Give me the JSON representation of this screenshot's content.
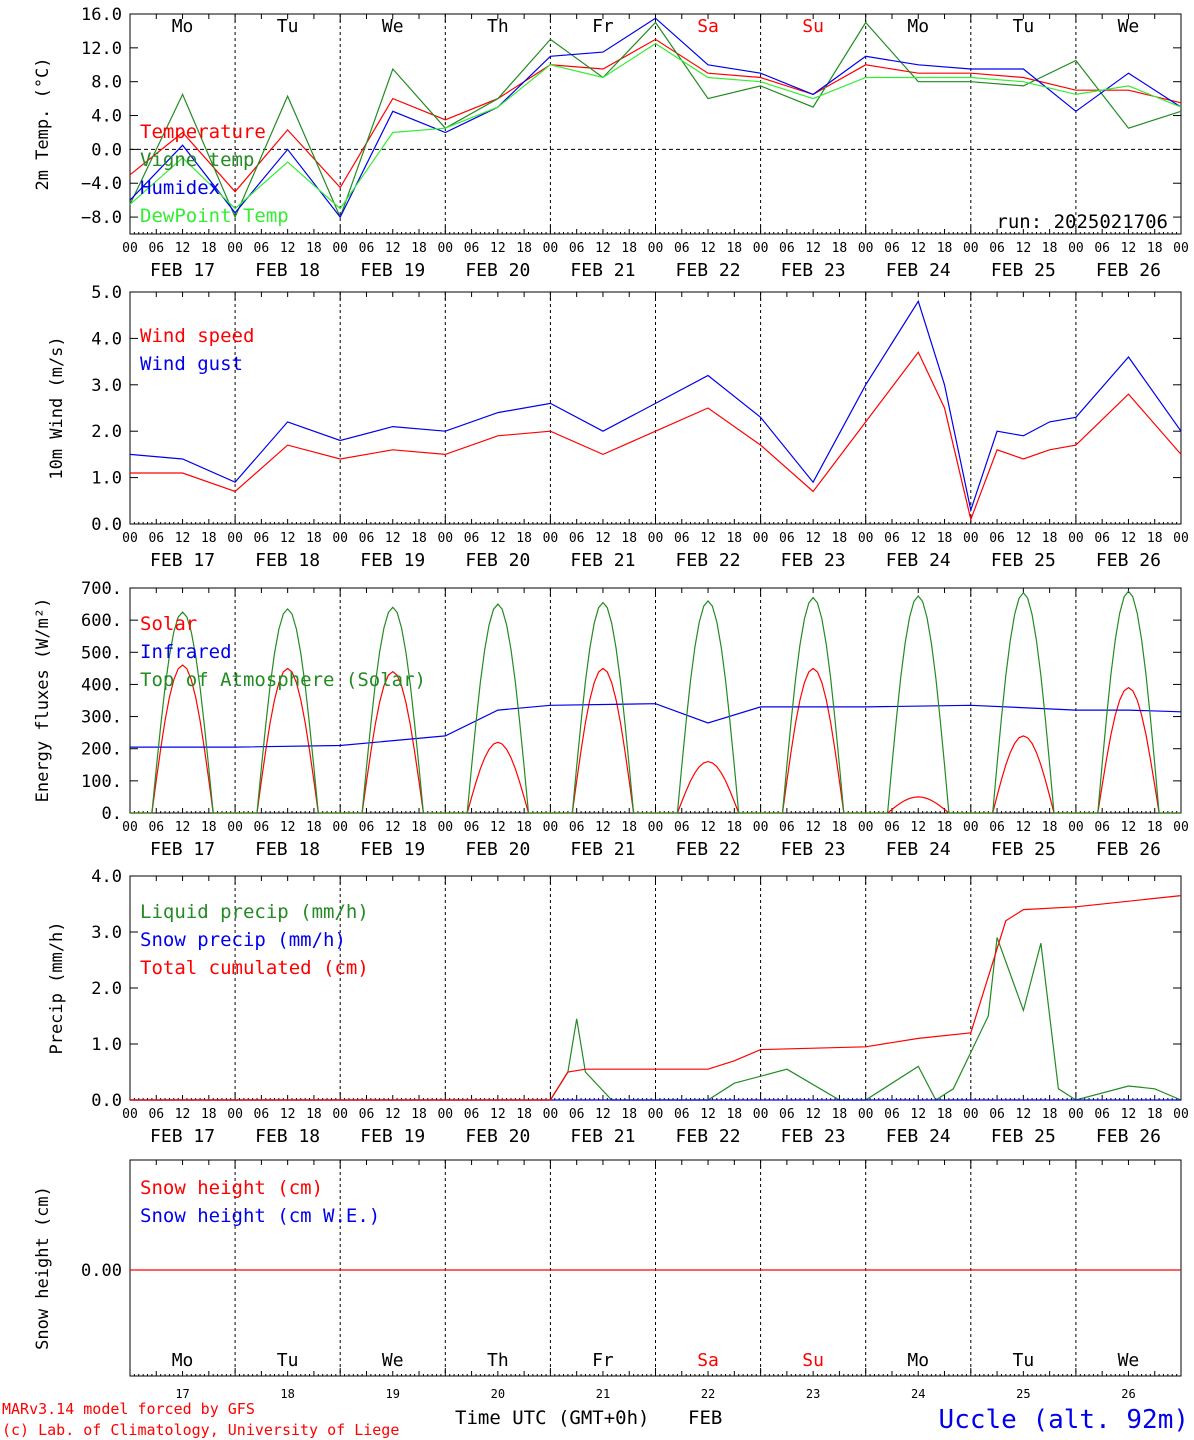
{
  "colors": {
    "red": "#ff0000",
    "green": "#228b22",
    "blue": "#0000ee",
    "lightgreen": "#33ee33",
    "black": "#000000"
  },
  "days": {
    "dates": [
      "FEB 17",
      "FEB 18",
      "FEB 19",
      "FEB 20",
      "FEB 21",
      "FEB 22",
      "FEB 23",
      "FEB 24",
      "FEB 25",
      "FEB 26"
    ],
    "weekdays": [
      "Mo",
      "Tu",
      "We",
      "Th",
      "Fr",
      "Sa",
      "Su",
      "Mo",
      "Tu",
      "We"
    ],
    "weekend": [
      false,
      false,
      false,
      false,
      false,
      true,
      true,
      false,
      false,
      false
    ],
    "hours": [
      "00",
      "06",
      "12",
      "18"
    ],
    "last_hour": "00",
    "day_numbers": [
      "17",
      "18",
      "19",
      "20",
      "21",
      "22",
      "23",
      "24",
      "25",
      "26"
    ]
  },
  "run_label": "run: 2025021706",
  "footer": {
    "credit1": "MARv3.14 model forced by GFS",
    "credit2": "(c) Lab. of Climatology, University of Liege",
    "xlabel": "Time UTC (GMT+0h)",
    "month": "FEB",
    "station": "Uccle (alt. 92m)"
  },
  "chart_data": [
    {
      "type": "line",
      "ylabel": "2m Temp. (°C)",
      "ylim": [
        -10,
        16
      ],
      "yticks": [
        "16.0",
        "12.0",
        "8.0",
        "4.0",
        "0.0",
        "−4.0",
        "−8.0"
      ],
      "ytick_values": [
        16,
        12,
        8,
        4,
        0,
        -4,
        -8
      ],
      "zero_line": true,
      "x_unit": "hours since FEB 17 00 UTC",
      "series": [
        {
          "name": "Temperature",
          "color": "red",
          "x": [
            0,
            12,
            24,
            36,
            48,
            60,
            72,
            84,
            96,
            108,
            120,
            132,
            144,
            156,
            168,
            180,
            192,
            204,
            216,
            228,
            240
          ],
          "values": [
            -3,
            2,
            -5,
            2.3,
            -4.5,
            6,
            3.5,
            6,
            10,
            9.5,
            13,
            9,
            8.5,
            6.5,
            10,
            9,
            9,
            8.5,
            7,
            7,
            5.5
          ]
        },
        {
          "name": "Vigne temp",
          "color": "green",
          "x": [
            0,
            12,
            24,
            36,
            48,
            60,
            72,
            84,
            96,
            108,
            120,
            132,
            144,
            156,
            168,
            180,
            192,
            204,
            216,
            228,
            240
          ],
          "values": [
            -6.5,
            6.5,
            -8,
            6.3,
            -8,
            9.5,
            2.5,
            6,
            13,
            8.5,
            15,
            6,
            7.5,
            5,
            15,
            8,
            8,
            7.5,
            10.5,
            2.5,
            4.5
          ]
        },
        {
          "name": "Humidex",
          "color": "blue",
          "x": [
            0,
            12,
            24,
            36,
            48,
            60,
            72,
            84,
            96,
            108,
            120,
            132,
            144,
            156,
            168,
            180,
            192,
            204,
            216,
            228,
            240
          ],
          "values": [
            -6,
            0.5,
            -7.5,
            0,
            -8,
            4.5,
            2,
            5,
            11,
            11.5,
            15.5,
            10,
            9,
            6.5,
            11,
            10,
            9.5,
            9.5,
            4.5,
            9,
            5
          ]
        },
        {
          "name": "DewPoint Temp",
          "color": "lightgreen",
          "x": [
            0,
            12,
            24,
            36,
            48,
            60,
            72,
            84,
            96,
            108,
            120,
            132,
            144,
            156,
            168,
            180,
            192,
            204,
            216,
            228,
            240
          ],
          "values": [
            -6.5,
            -1,
            -7,
            -1.5,
            -7,
            2,
            2.5,
            5,
            10,
            8.5,
            12.5,
            8.5,
            8,
            6,
            8.5,
            8.5,
            8.5,
            8,
            6.5,
            7.5,
            5
          ]
        }
      ]
    },
    {
      "type": "line",
      "ylabel": "10m Wind (m/s)",
      "ylim": [
        0,
        5
      ],
      "yticks": [
        "5.0",
        "4.0",
        "3.0",
        "2.0",
        "1.0",
        "0.0"
      ],
      "ytick_values": [
        5,
        4,
        3,
        2,
        1,
        0
      ],
      "x_unit": "hours since FEB 17 00 UTC",
      "series": [
        {
          "name": "Wind speed",
          "color": "red",
          "x": [
            0,
            12,
            24,
            36,
            48,
            60,
            72,
            84,
            96,
            108,
            120,
            132,
            144,
            156,
            168,
            180,
            186,
            192,
            198,
            204,
            210,
            216,
            228,
            240
          ],
          "values": [
            1.1,
            1.1,
            0.7,
            1.7,
            1.4,
            1.6,
            1.5,
            1.9,
            2.0,
            1.5,
            2.0,
            2.5,
            1.7,
            0.7,
            2.2,
            3.7,
            2.5,
            0.1,
            1.6,
            1.4,
            1.6,
            1.7,
            2.8,
            1.5
          ]
        },
        {
          "name": "Wind gust",
          "color": "blue",
          "x": [
            0,
            12,
            24,
            36,
            48,
            60,
            72,
            84,
            96,
            108,
            120,
            132,
            144,
            156,
            168,
            180,
            186,
            192,
            198,
            204,
            210,
            216,
            228,
            240
          ],
          "values": [
            1.5,
            1.4,
            0.9,
            2.2,
            1.8,
            2.1,
            2.0,
            2.4,
            2.6,
            2.0,
            2.6,
            3.2,
            2.3,
            0.9,
            3.0,
            4.8,
            3.0,
            0.3,
            2.0,
            1.9,
            2.2,
            2.3,
            3.6,
            2.0
          ]
        }
      ]
    },
    {
      "type": "line",
      "ylabel": "Energy fluxes (W/m²)",
      "ylim": [
        0,
        700
      ],
      "yticks": [
        "700.",
        "600.",
        "500.",
        "400.",
        "300.",
        "200.",
        "100.",
        "0."
      ],
      "ytick_values": [
        700,
        600,
        500,
        400,
        300,
        200,
        100,
        0
      ],
      "x_unit": "hours since FEB 17 00 UTC",
      "series": [
        {
          "name": "Solar",
          "color": "red",
          "daily_peak_hour": 12,
          "daily_peaks": [
            460,
            450,
            440,
            220,
            450,
            160,
            450,
            50,
            240,
            390
          ]
        },
        {
          "name": "Infrared",
          "color": "blue",
          "x": [
            0,
            24,
            48,
            72,
            84,
            96,
            120,
            132,
            144,
            168,
            192,
            216,
            228,
            240
          ],
          "values": [
            205,
            205,
            210,
            240,
            320,
            335,
            340,
            280,
            330,
            330,
            335,
            320,
            320,
            315
          ]
        },
        {
          "name": "Top of Atmosphere (Solar)",
          "color": "green",
          "daily_peak_hour": 12,
          "daily_peaks": [
            625,
            635,
            640,
            650,
            655,
            660,
            670,
            675,
            685,
            690
          ]
        }
      ]
    },
    {
      "type": "line",
      "ylabel": "Precip (mm/h)",
      "ylim": [
        0,
        4
      ],
      "yticks": [
        "4.0",
        "3.0",
        "2.0",
        "1.0",
        "0.0"
      ],
      "ytick_values": [
        4,
        3,
        2,
        1,
        0
      ],
      "x_unit": "hours since FEB 17 00 UTC",
      "series": [
        {
          "name": "Liquid precip (mm/h)",
          "color": "green",
          "x": [
            0,
            96,
            100,
            102,
            104,
            110,
            132,
            138,
            150,
            162,
            168,
            180,
            184,
            188,
            196,
            198,
            204,
            208,
            212,
            216,
            228,
            234,
            240
          ],
          "values": [
            0,
            0,
            0.5,
            1.45,
            0.5,
            0,
            0,
            0.3,
            0.55,
            0,
            0,
            0.6,
            0,
            0.2,
            1.5,
            2.9,
            1.6,
            2.8,
            0.2,
            0,
            0.25,
            0.2,
            0
          ]
        },
        {
          "name": "Snow precip (mm/h)",
          "color": "blue",
          "x": [
            0,
            240
          ],
          "values": [
            0,
            0
          ]
        },
        {
          "name": "Total cumulated (cm)",
          "color": "red",
          "x": [
            0,
            96,
            100,
            104,
            132,
            138,
            144,
            168,
            180,
            192,
            200,
            204,
            216,
            240
          ],
          "values": [
            0,
            0,
            0.5,
            0.55,
            0.55,
            0.7,
            0.9,
            0.95,
            1.1,
            1.2,
            3.2,
            3.4,
            3.45,
            3.65
          ]
        }
      ]
    },
    {
      "type": "line",
      "ylabel": "Snow height (cm)",
      "yticks": [
        "0.00"
      ],
      "ytick_values": [
        0
      ],
      "x_unit": "hours since FEB 17 00 UTC",
      "series": [
        {
          "name": "Snow height (cm)",
          "color": "red",
          "x": [
            0,
            240
          ],
          "values": [
            0,
            0
          ]
        },
        {
          "name": "Snow height (cm W.E.)",
          "color": "blue",
          "x": [
            0,
            240
          ],
          "values": [
            0,
            0
          ]
        }
      ]
    }
  ]
}
